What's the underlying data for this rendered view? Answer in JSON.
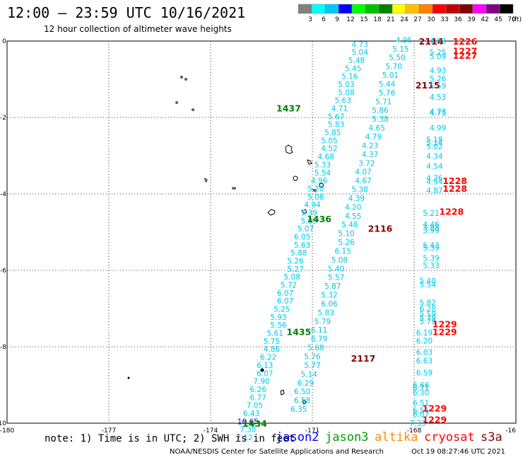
{
  "header": {
    "title": "12:00 – 23:59 UTC 10/16/2021",
    "subtitle": "12 hour collection of altimeter wave heights"
  },
  "color_scale": {
    "values": [
      "3",
      "6",
      "9",
      "12",
      "15",
      "18",
      "21",
      "24",
      "27",
      "30",
      "33",
      "36",
      "39",
      "42",
      "45",
      "70"
    ],
    "unit": "(ft)",
    "colors": [
      "#808080",
      "#00ffff",
      "#00c8ff",
      "#0000ff",
      "#00ff00",
      "#00c000",
      "#008000",
      "#ffff00",
      "#ffc000",
      "#ff8000",
      "#ff0000",
      "#c00000",
      "#800000",
      "#ff00ff",
      "#800080",
      "#000000"
    ]
  },
  "axes": {
    "x_ticks": [
      "-180",
      "-177",
      "-174",
      "-171",
      "-168",
      "-16"
    ],
    "y_ticks": [
      "0",
      "-2",
      "-4",
      "-6",
      "-8",
      "-10"
    ]
  },
  "tracks": [
    {
      "satellite": "jason3",
      "times": [
        {
          "label": "1437",
          "lon": -171.7,
          "lat": -1.75
        },
        {
          "label": "1436",
          "lon": -170.8,
          "lat": -4.65
        },
        {
          "label": "1435",
          "lon": -171.4,
          "lat": -7.6
        },
        {
          "label": "1434",
          "lon": -172.7,
          "lat": -10.0
        }
      ],
      "points": [
        {
          "v": "4.73",
          "lon": -169.6,
          "lat": -0.08
        },
        {
          "v": "5.04",
          "lon": -169.6,
          "lat": -0.29
        },
        {
          "v": "5.48",
          "lon": -169.7,
          "lat": -0.5
        },
        {
          "v": "5.45",
          "lon": -169.8,
          "lat": -0.71
        },
        {
          "v": "5.16",
          "lon": -169.9,
          "lat": -0.92
        },
        {
          "v": "5.03",
          "lon": -170.0,
          "lat": -1.13
        },
        {
          "v": "5.08",
          "lon": -170.0,
          "lat": -1.34
        },
        {
          "v": "5.63",
          "lon": -170.1,
          "lat": -1.55
        },
        {
          "v": "4.71",
          "lon": -170.2,
          "lat": -1.76
        },
        {
          "v": "5.67",
          "lon": -170.3,
          "lat": -1.97
        },
        {
          "v": "5.83",
          "lon": -170.3,
          "lat": -2.18
        },
        {
          "v": "5.85",
          "lon": -170.4,
          "lat": -2.39
        },
        {
          "v": "5.05",
          "lon": -170.5,
          "lat": -2.6
        },
        {
          "v": "4.52",
          "lon": -170.5,
          "lat": -2.81
        },
        {
          "v": "4.68",
          "lon": -170.6,
          "lat": -3.02
        },
        {
          "v": "5.33",
          "lon": -170.7,
          "lat": -3.23
        },
        {
          "v": "5.54",
          "lon": -170.7,
          "lat": -3.44
        },
        {
          "v": "4.96",
          "lon": -170.8,
          "lat": -3.65
        },
        {
          "v": "5.20",
          "lon": -170.9,
          "lat": -3.86
        },
        {
          "v": "5.08",
          "lon": -170.9,
          "lat": -4.07
        },
        {
          "v": "4.94",
          "lon": -171.0,
          "lat": -4.28
        },
        {
          "v": "5.39",
          "lon": -171.1,
          "lat": -4.49
        },
        {
          "v": "5.09",
          "lon": -171.1,
          "lat": -4.7
        },
        {
          "v": "5.07",
          "lon": -171.2,
          "lat": -4.91
        },
        {
          "v": "6.05",
          "lon": -171.3,
          "lat": -5.12
        },
        {
          "v": "5.63",
          "lon": -171.3,
          "lat": -5.33
        },
        {
          "v": "5.88",
          "lon": -171.4,
          "lat": -5.54
        },
        {
          "v": "5.26",
          "lon": -171.5,
          "lat": -5.75
        },
        {
          "v": "5.27",
          "lon": -171.5,
          "lat": -5.96
        },
        {
          "v": "5.08",
          "lon": -171.6,
          "lat": -6.17
        },
        {
          "v": "5.72",
          "lon": -171.7,
          "lat": -6.38
        },
        {
          "v": "6.07",
          "lon": -171.8,
          "lat": -6.59
        },
        {
          "v": "6.07",
          "lon": -171.8,
          "lat": -6.8
        },
        {
          "v": "5.25",
          "lon": -171.9,
          "lat": -7.01
        },
        {
          "v": "5.93",
          "lon": -172.0,
          "lat": -7.22
        },
        {
          "v": "5.56",
          "lon": -172.0,
          "lat": -7.43
        },
        {
          "v": "5.61",
          "lon": -172.1,
          "lat": -7.64
        },
        {
          "v": "5.75",
          "lon": -172.2,
          "lat": -7.85
        },
        {
          "v": "4.86",
          "lon": -172.2,
          "lat": -8.06
        },
        {
          "v": "6.22",
          "lon": -172.3,
          "lat": -8.27
        },
        {
          "v": "6.13",
          "lon": -172.4,
          "lat": -8.48
        },
        {
          "v": "6.07",
          "lon": -172.4,
          "lat": -8.69
        },
        {
          "v": "7.90",
          "lon": -172.5,
          "lat": -8.9
        },
        {
          "v": "6.26",
          "lon": -172.6,
          "lat": -9.11
        },
        {
          "v": "6.77",
          "lon": -172.6,
          "lat": -9.32
        },
        {
          "v": "7.05",
          "lon": -172.7,
          "lat": -9.53
        },
        {
          "v": "6.43",
          "lon": -172.8,
          "lat": -9.74
        },
        {
          "v": "10.65",
          "lon": -172.9,
          "lat": -9.95,
          "c": "#0000ff"
        },
        {
          "v": "7.38",
          "lon": -172.9,
          "lat": -10.16
        },
        {
          "v": "7.12",
          "lon": -173.0,
          "lat": -10.37
        }
      ]
    },
    {
      "satellite": "s3a",
      "times": [
        {
          "label": "2114",
          "lon": -167.5,
          "lat": 0.0
        },
        {
          "label": "2115",
          "lon": -167.6,
          "lat": -1.15
        },
        {
          "label": "2116",
          "lon": -169.0,
          "lat": -4.9
        },
        {
          "label": "2117",
          "lon": -169.5,
          "lat": -8.3
        }
      ],
      "points": [
        {
          "v": "4.95",
          "lon": -168.3,
          "lat": 0.03
        },
        {
          "v": "5.15",
          "lon": -168.4,
          "lat": -0.2
        },
        {
          "v": "5.50",
          "lon": -168.5,
          "lat": -0.43
        },
        {
          "v": "5.70",
          "lon": -168.6,
          "lat": -0.66
        },
        {
          "v": "5.01",
          "lon": -168.7,
          "lat": -0.89
        },
        {
          "v": "5.44",
          "lon": -168.8,
          "lat": -1.12
        },
        {
          "v": "5.76",
          "lon": -168.8,
          "lat": -1.35
        },
        {
          "v": "5.71",
          "lon": -168.9,
          "lat": -1.58
        },
        {
          "v": "5.86",
          "lon": -169.0,
          "lat": -1.81
        },
        {
          "v": "5.38",
          "lon": -169.0,
          "lat": -2.04
        },
        {
          "v": "4.65",
          "lon": -169.1,
          "lat": -2.27
        },
        {
          "v": "4.79",
          "lon": -169.2,
          "lat": -2.5
        },
        {
          "v": "4.23",
          "lon": -169.3,
          "lat": -2.73
        },
        {
          "v": "4.37",
          "lon": -169.3,
          "lat": -2.96
        },
        {
          "v": "3.72",
          "lon": -169.4,
          "lat": -3.19
        },
        {
          "v": "4.07",
          "lon": -169.5,
          "lat": -3.42
        },
        {
          "v": "4.67",
          "lon": -169.5,
          "lat": -3.65
        },
        {
          "v": "5.38",
          "lon": -169.6,
          "lat": -3.88
        },
        {
          "v": "4.39",
          "lon": -169.7,
          "lat": -4.11
        },
        {
          "v": "4.20",
          "lon": -169.8,
          "lat": -4.34
        },
        {
          "v": "4.55",
          "lon": -169.8,
          "lat": -4.57
        },
        {
          "v": "5.48",
          "lon": -169.9,
          "lat": -4.8
        },
        {
          "v": "5.10",
          "lon": -170.0,
          "lat": -5.03
        },
        {
          "v": "5.26",
          "lon": -170.0,
          "lat": -5.26
        },
        {
          "v": "6.15",
          "lon": -170.1,
          "lat": -5.49
        },
        {
          "v": "5.08",
          "lon": -170.2,
          "lat": -5.72
        },
        {
          "v": "5.40",
          "lon": -170.3,
          "lat": -5.95
        },
        {
          "v": "5.57",
          "lon": -170.3,
          "lat": -6.18
        },
        {
          "v": "5.87",
          "lon": -170.4,
          "lat": -6.41
        },
        {
          "v": "5.32",
          "lon": -170.5,
          "lat": -6.64
        },
        {
          "v": "6.06",
          "lon": -170.5,
          "lat": -6.87
        },
        {
          "v": "5.83",
          "lon": -170.6,
          "lat": -7.1
        },
        {
          "v": "5.79",
          "lon": -170.7,
          "lat": -7.33
        },
        {
          "v": "6.11",
          "lon": -170.8,
          "lat": -7.56
        },
        {
          "v": "6.79",
          "lon": -170.8,
          "lat": -7.79
        },
        {
          "v": "5.68",
          "lon": -170.9,
          "lat": -8.02
        },
        {
          "v": "5.76",
          "lon": -171.0,
          "lat": -8.25
        },
        {
          "v": "5.77",
          "lon": -171.0,
          "lat": -8.48
        },
        {
          "v": "5.14",
          "lon": -171.1,
          "lat": -8.71
        },
        {
          "v": "6.29",
          "lon": -171.2,
          "lat": -8.94
        },
        {
          "v": "6.50",
          "lon": -171.3,
          "lat": -9.17
        },
        {
          "v": "6.58",
          "lon": -171.3,
          "lat": -9.4
        },
        {
          "v": "6.35",
          "lon": -171.4,
          "lat": -9.63
        }
      ]
    },
    {
      "satellite": "cryosat",
      "times": [
        {
          "label": "1226",
          "lon": -166.5,
          "lat": 0.0
        },
        {
          "label": "1227",
          "lon": -166.5,
          "lat": -0.25
        },
        {
          "label": "1227",
          "lon": -166.5,
          "lat": -0.37
        },
        {
          "label": "1228",
          "lon": -166.8,
          "lat": -3.65
        },
        {
          "label": "1228",
          "lon": -166.8,
          "lat": -3.85
        },
        {
          "label": "1228",
          "lon": -166.9,
          "lat": -4.45
        },
        {
          "label": "1229",
          "lon": -167.1,
          "lat": -7.4
        },
        {
          "label": "1229",
          "lon": -167.1,
          "lat": -7.6
        },
        {
          "label": "1229",
          "lon": -167.4,
          "lat": -9.6
        },
        {
          "label": "1229",
          "lon": -167.4,
          "lat": -9.9
        }
      ],
      "points": [
        {
          "v": "4.93",
          "lon": -167.3,
          "lat": 0.0
        },
        {
          "v": "5.25",
          "lon": -167.3,
          "lat": -0.29
        },
        {
          "v": "5.09",
          "lon": -167.3,
          "lat": -0.4
        },
        {
          "v": "4.93",
          "lon": -167.3,
          "lat": -0.77
        },
        {
          "v": "5.26",
          "lon": -167.3,
          "lat": -0.98
        },
        {
          "v": "5.59",
          "lon": -167.3,
          "lat": -1.17
        },
        {
          "v": "4.53",
          "lon": -167.3,
          "lat": -1.46
        },
        {
          "v": "4.73",
          "lon": -167.3,
          "lat": -1.84
        },
        {
          "v": "4.75",
          "lon": -167.3,
          "lat": -1.88
        },
        {
          "v": "4.99",
          "lon": -167.3,
          "lat": -2.27
        },
        {
          "v": "5.18",
          "lon": -167.4,
          "lat": -2.57
        },
        {
          "v": "5.14",
          "lon": -167.4,
          "lat": -2.66
        },
        {
          "v": "5.02",
          "lon": -167.4,
          "lat": -2.76
        },
        {
          "v": "4.34",
          "lon": -167.4,
          "lat": -3.01
        },
        {
          "v": "4.54",
          "lon": -167.4,
          "lat": -3.27
        },
        {
          "v": "4.76",
          "lon": -167.4,
          "lat": -3.58
        },
        {
          "v": "4.94",
          "lon": -167.4,
          "lat": -3.68
        },
        {
          "v": "4.87",
          "lon": -167.4,
          "lat": -3.91
        },
        {
          "v": "5.21",
          "lon": -167.5,
          "lat": -4.5
        },
        {
          "v": "4.46",
          "lon": -167.5,
          "lat": -4.8
        },
        {
          "v": "3.88",
          "lon": -167.5,
          "lat": -4.88
        },
        {
          "v": "3.99",
          "lon": -167.5,
          "lat": -4.95
        },
        {
          "v": "5.43",
          "lon": -167.5,
          "lat": -5.34
        },
        {
          "v": "5.39",
          "lon": -167.5,
          "lat": -5.41
        },
        {
          "v": "5.39",
          "lon": -167.5,
          "lat": -5.68
        },
        {
          "v": "5.33",
          "lon": -167.5,
          "lat": -5.87
        },
        {
          "v": "5.40",
          "lon": -167.6,
          "lat": -6.27
        },
        {
          "v": "5.54",
          "lon": -167.6,
          "lat": -6.37
        },
        {
          "v": "5.82",
          "lon": -167.6,
          "lat": -6.84
        },
        {
          "v": "6.28",
          "lon": -167.6,
          "lat": -7.0
        },
        {
          "v": "5.59",
          "lon": -167.6,
          "lat": -7.14
        },
        {
          "v": "5.79",
          "lon": -167.6,
          "lat": -7.24
        },
        {
          "v": "5.79",
          "lon": -167.6,
          "lat": -7.33
        },
        {
          "v": "6.19",
          "lon": -167.7,
          "lat": -7.63
        },
        {
          "v": "6.20",
          "lon": -167.7,
          "lat": -7.84
        },
        {
          "v": "6.03",
          "lon": -167.7,
          "lat": -8.14
        },
        {
          "v": "6.63",
          "lon": -167.7,
          "lat": -8.36
        },
        {
          "v": "6.59",
          "lon": -167.7,
          "lat": -8.68
        },
        {
          "v": "6.66",
          "lon": -167.8,
          "lat": -9.0
        },
        {
          "v": "6.71",
          "lon": -167.8,
          "lat": -9.07
        },
        {
          "v": "6.30",
          "lon": -167.8,
          "lat": -9.19
        },
        {
          "v": "6.51",
          "lon": -167.8,
          "lat": -9.46
        },
        {
          "v": "6.56",
          "lon": -167.8,
          "lat": -9.67
        },
        {
          "v": "6.07",
          "lon": -167.8,
          "lat": -9.76
        },
        {
          "v": "7.33",
          "lon": -167.9,
          "lat": -10.0
        }
      ]
    }
  ],
  "footer": {
    "note": "note: 1) Time is in UTC; 2) SWH is in feet",
    "legend": [
      {
        "name": "jason2",
        "color": "#0000ff"
      },
      {
        "name": "jason3",
        "color": "#00a000"
      },
      {
        "name": "altika",
        "color": "#ff8c00"
      },
      {
        "name": "cryosat",
        "color": "#ff0000"
      },
      {
        "name": "s3a",
        "color": "#8b0000"
      }
    ],
    "credit": "NOAA/NESDIS Center for Satellite Applications and Research",
    "generated": "Oct 19 08:27:46 UTC 2021"
  }
}
